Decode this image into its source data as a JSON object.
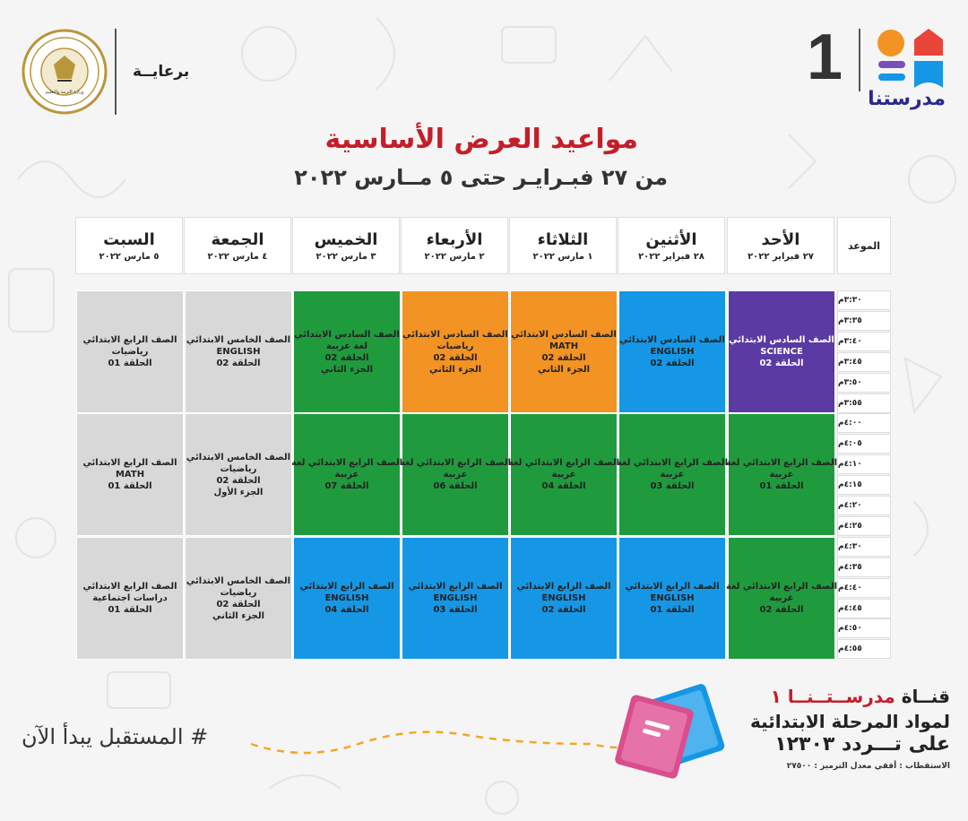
{
  "header": {
    "sponsor_label": "برعايــة",
    "seal_text": "MINISTRY OF EDUCATION AND TECHNICAL EDUCATION",
    "brand_number": "1",
    "brand_name": "مدرستنا",
    "title": "مواعيد العرض الأساسية",
    "subtitle": "من ٢٧ فبـرايـر حتى ٥ مــارس ٢٠٢٢"
  },
  "table": {
    "time_header": "الموعد",
    "days": [
      {
        "name": "الأحد",
        "date": "٢٧ فبراير ٢٠٢٢"
      },
      {
        "name": "الأثنين",
        "date": "٢٨ فبراير ٢٠٢٢"
      },
      {
        "name": "الثلاثاء",
        "date": "١ مارس ٢٠٢٢"
      },
      {
        "name": "الأربعاء",
        "date": "٢ مارس ٢٠٢٢"
      },
      {
        "name": "الخميس",
        "date": "٣ مارس ٢٠٢٢"
      },
      {
        "name": "الجمعة",
        "date": "٤ مارس ٢٠٢٢"
      },
      {
        "name": "السبت",
        "date": "٥ مارس ٢٠٢٢"
      }
    ],
    "times": [
      "٣:٣٠م",
      "٣:٣٥م",
      "٣:٤٠م",
      "٣:٤٥م",
      "٣:٥٠م",
      "٣:٥٥م",
      "٤:٠٠م",
      "٤:٠٥م",
      "٤:١٠م",
      "٤:١٥م",
      "٤:٢٠م",
      "٤:٢٥م",
      "٤:٣٠م",
      "٤:٣٥م",
      "٤:٤٠م",
      "٤:٤٥م",
      "٤:٥٠م",
      "٤:٥٥م"
    ],
    "blocks": [
      [
        {
          "color": "#5b3aa3",
          "lines": [
            "الصف السادس الابتدائي",
            "SCIENCE",
            "الحلقة 02"
          ]
        },
        {
          "color": "#1597e5",
          "lines": [
            "الصف السادس الابتدائي",
            "ENGLISH",
            "الحلقة 02"
          ]
        },
        {
          "color": "#f39323",
          "lines": [
            "الصف السادس الابتدائي",
            "MATH",
            "الحلقة 02",
            "الجزء الثاني"
          ]
        },
        {
          "color": "#f39323",
          "lines": [
            "الصف السادس الابتدائي",
            "رياضيات",
            "الحلقة 02",
            "الجزء الثاني"
          ]
        },
        {
          "color": "#1f9b3e",
          "lines": [
            "الصف السادس الابتدائي",
            "لغة عربية",
            "الحلقة 02",
            "الجزء الثاني"
          ]
        },
        {
          "color": "#d8d8d8",
          "lines": [
            "الصف الخامس الابتدائي",
            "ENGLISH",
            "الحلقة 02"
          ]
        },
        {
          "color": "#d8d8d8",
          "lines": [
            "الصف الرابع الابتدائي",
            "رياضيات",
            "الحلقة 01"
          ]
        }
      ],
      [
        {
          "color": "#1f9b3e",
          "lines": [
            "الصف الرابع الابتدائي لغة",
            "عربية",
            "الحلقة 01"
          ]
        },
        {
          "color": "#1f9b3e",
          "lines": [
            "الصف الرابع الابتدائي لغة",
            "عربية",
            "الحلقة 03"
          ]
        },
        {
          "color": "#1f9b3e",
          "lines": [
            "الصف الرابع الابتدائي لغة",
            "عربية",
            "الحلقة 04"
          ]
        },
        {
          "color": "#1f9b3e",
          "lines": [
            "الصف الرابع الابتدائي لغة",
            "عربية",
            "الحلقة 06"
          ]
        },
        {
          "color": "#1f9b3e",
          "lines": [
            "الصف الرابع الابتدائي لغة",
            "عربية",
            "الحلقة 07"
          ]
        },
        {
          "color": "#d8d8d8",
          "lines": [
            "الصف الخامس الابتدائي",
            "رياضيات",
            "الحلقة 02",
            "الجزء الأول"
          ]
        },
        {
          "color": "#d8d8d8",
          "lines": [
            "الصف الرابع الابتدائي",
            "MATH",
            "الحلقة 01"
          ]
        }
      ],
      [
        {
          "color": "#1f9b3e",
          "lines": [
            "الصف الرابع الابتدائي لغة",
            "عربية",
            "الحلقة 02"
          ]
        },
        {
          "color": "#1597e5",
          "lines": [
            "الصف الرابع الابتدائي",
            "ENGLISH",
            "الحلقة 01"
          ]
        },
        {
          "color": "#1597e5",
          "lines": [
            "الصف الرابع الابتدائي",
            "ENGLISH",
            "الحلقة 02"
          ]
        },
        {
          "color": "#1597e5",
          "lines": [
            "الصف الرابع الابتدائي",
            "ENGLISH",
            "الحلقة 03"
          ]
        },
        {
          "color": "#1597e5",
          "lines": [
            "الصف الرابع الابتدائي",
            "ENGLISH",
            "الحلقة 04"
          ]
        },
        {
          "color": "#d8d8d8",
          "lines": [
            "الصف الخامس الابتدائي",
            "رياضيات",
            "الحلقة 02",
            "الجزء الثاني"
          ]
        },
        {
          "color": "#d8d8d8",
          "lines": [
            "الصف الرابع الابتدائي",
            "دراسات اجتماعية",
            "الحلقة 01"
          ]
        }
      ]
    ]
  },
  "footer": {
    "hashtag": "# المستقبل يبدأ الآن",
    "channel_prefix": "قنــاة",
    "channel_name": "مدرســتــنــا ١",
    "channel_line2": "لمواد المرحلة الابتدائية",
    "channel_line3": "على تـــردد ١٢٣٠٣",
    "channel_note": "الاستقطاب : أفقي معدل الترميز : ٢٧٥٠٠"
  }
}
